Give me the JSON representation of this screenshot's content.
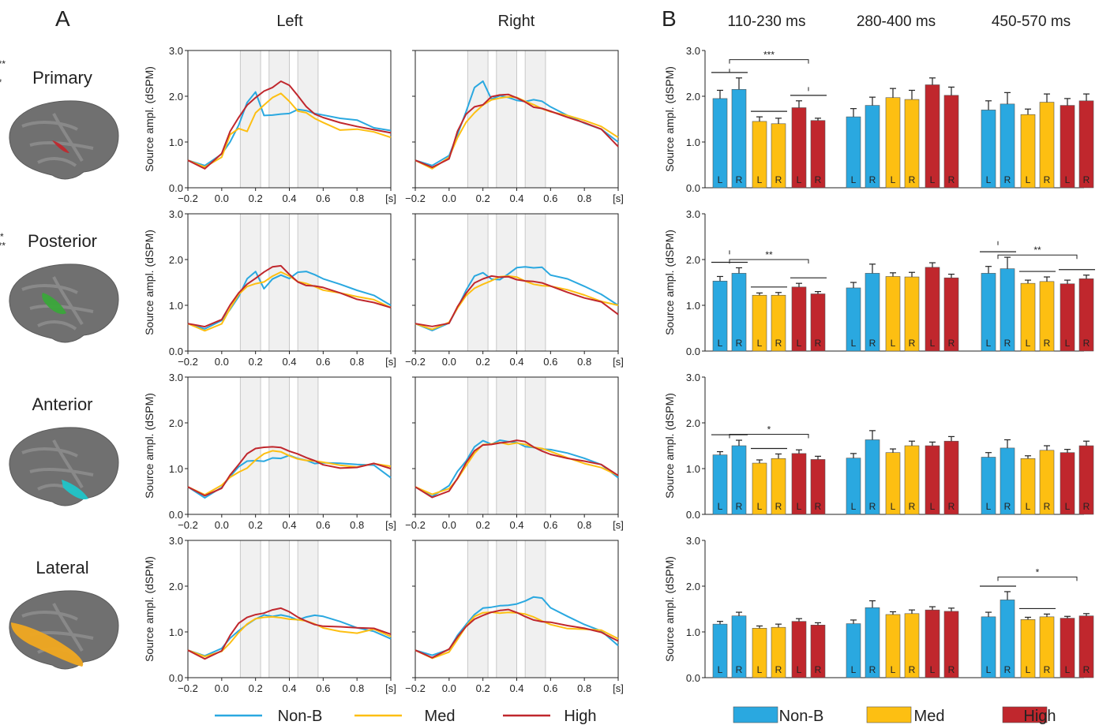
{
  "panel_labels": {
    "a": "A",
    "b": "B"
  },
  "hemispheres": [
    "Left",
    "Right"
  ],
  "regions": [
    {
      "name": "Primary",
      "color": "#c0282d"
    },
    {
      "name": "Posterior",
      "color": "#3aa63a"
    },
    {
      "name": "Anterior",
      "color": "#1fc4c8"
    },
    {
      "name": "Lateral",
      "color": "#f0a820"
    }
  ],
  "time_windows": [
    "110-230 ms",
    "280-400 ms",
    "450-570 ms"
  ],
  "colors": {
    "nonb": "#2aa8e0",
    "med": "#fdbf12",
    "high": "#c0272d"
  },
  "legend": [
    {
      "key": "nonb",
      "label": "Non-B"
    },
    {
      "key": "med",
      "label": "Med"
    },
    {
      "key": "high",
      "label": "High"
    }
  ],
  "chart_data": [
    {
      "type": "line",
      "panel": "A",
      "ylabel": "Source ampl. (dSPM)",
      "xticks": [
        "−0.2",
        "0.0",
        "0.2",
        "0.4",
        "0.6",
        "0.8",
        "[s]"
      ],
      "xtick_values": [
        -0.2,
        0.0,
        0.2,
        0.4,
        0.6,
        0.8,
        1.0
      ],
      "yticks": [
        "0.0",
        "1.0",
        "2.0",
        "3.0"
      ],
      "xlim": [
        -0.2,
        1.0
      ],
      "ylim": [
        0,
        3
      ],
      "shaded_windows": [
        [
          0.11,
          0.23
        ],
        [
          0.28,
          0.4
        ],
        [
          0.45,
          0.57
        ]
      ],
      "x": [
        -0.2,
        -0.1,
        0.0,
        0.05,
        0.1,
        0.15,
        0.2,
        0.25,
        0.3,
        0.35,
        0.4,
        0.45,
        0.5,
        0.55,
        0.6,
        0.7,
        0.8,
        0.9,
        1.0
      ],
      "series": [
        {
          "key": "nonb",
          "name": "Non-B",
          "values": [
            [
              0.6,
              0.45,
              0.7,
              1.0,
              1.4,
              1.9,
              2.1,
              1.55,
              1.55,
              1.6,
              1.65,
              1.75,
              1.7,
              1.6,
              1.55,
              1.5,
              1.5,
              1.35,
              1.25
            ],
            [
              0.6,
              0.45,
              0.7,
              1.2,
              1.7,
              2.2,
              2.3,
              1.9,
              2.0,
              2.0,
              1.95,
              1.9,
              1.9,
              1.85,
              1.75,
              1.6,
              1.45,
              1.3,
              1.0
            ],
            [
              0.6,
              0.48,
              0.7,
              0.95,
              1.2,
              1.55,
              1.7,
              1.35,
              1.6,
              1.7,
              1.6,
              1.7,
              1.7,
              1.65,
              1.6,
              1.5,
              1.35,
              1.2,
              1.0
            ],
            [
              0.6,
              0.48,
              0.65,
              0.95,
              1.3,
              1.6,
              1.7,
              1.6,
              1.6,
              1.7,
              1.8,
              1.8,
              1.8,
              1.85,
              1.7,
              1.6,
              1.4,
              1.2,
              1.0
            ],
            [
              0.6,
              0.4,
              0.6,
              0.8,
              1.0,
              1.15,
              1.2,
              1.2,
              1.25,
              1.2,
              1.25,
              1.2,
              1.2,
              1.15,
              1.15,
              1.1,
              1.05,
              1.05,
              0.8
            ],
            [
              0.6,
              0.4,
              0.6,
              0.9,
              1.15,
              1.5,
              1.65,
              1.55,
              1.6,
              1.55,
              1.55,
              1.5,
              1.5,
              1.45,
              1.4,
              1.3,
              1.2,
              1.1,
              0.8
            ],
            [
              0.6,
              0.45,
              0.6,
              0.85,
              1.05,
              1.2,
              1.3,
              1.35,
              1.3,
              1.35,
              1.35,
              1.3,
              1.35,
              1.35,
              1.3,
              1.2,
              1.1,
              1.05,
              0.85
            ],
            [
              0.6,
              0.45,
              0.6,
              0.95,
              1.2,
              1.4,
              1.5,
              1.5,
              1.55,
              1.6,
              1.65,
              1.7,
              1.75,
              1.7,
              1.5,
              1.35,
              1.2,
              1.05,
              0.7
            ]
          ]
        },
        {
          "key": "med",
          "name": "Med",
          "values": [
            [
              0.6,
              0.45,
              0.7,
              1.2,
              1.3,
              1.2,
              1.6,
              1.8,
              2.0,
              2.1,
              1.9,
              1.65,
              1.6,
              1.5,
              1.45,
              1.3,
              1.3,
              1.2,
              1.1
            ],
            [
              0.6,
              0.45,
              0.7,
              1.1,
              1.4,
              1.6,
              1.8,
              1.95,
              2.0,
              2.0,
              1.95,
              1.85,
              1.8,
              1.75,
              1.7,
              1.6,
              1.45,
              1.3,
              1.1
            ],
            [
              0.6,
              0.48,
              0.6,
              0.9,
              1.2,
              1.4,
              1.5,
              1.55,
              1.65,
              1.7,
              1.6,
              1.5,
              1.5,
              1.45,
              1.35,
              1.25,
              1.15,
              1.1,
              0.95
            ],
            [
              0.6,
              0.48,
              0.6,
              0.9,
              1.2,
              1.4,
              1.5,
              1.55,
              1.6,
              1.6,
              1.6,
              1.55,
              1.5,
              1.45,
              1.4,
              1.3,
              1.2,
              1.1,
              1.0
            ],
            [
              0.6,
              0.4,
              0.6,
              0.8,
              0.95,
              1.05,
              1.2,
              1.3,
              1.35,
              1.35,
              1.3,
              1.25,
              1.2,
              1.15,
              1.1,
              1.05,
              1.05,
              1.15,
              1.05
            ],
            [
              0.6,
              0.4,
              0.55,
              0.8,
              1.1,
              1.35,
              1.5,
              1.5,
              1.55,
              1.55,
              1.6,
              1.55,
              1.45,
              1.4,
              1.35,
              1.25,
              1.15,
              1.05,
              0.85
            ],
            [
              0.6,
              0.45,
              0.6,
              0.8,
              1.0,
              1.15,
              1.25,
              1.3,
              1.35,
              1.35,
              1.3,
              1.25,
              1.2,
              1.15,
              1.1,
              1.05,
              1.0,
              1.05,
              0.9
            ],
            [
              0.6,
              0.45,
              0.6,
              0.85,
              1.1,
              1.3,
              1.4,
              1.45,
              1.45,
              1.45,
              1.4,
              1.35,
              1.3,
              1.25,
              1.2,
              1.1,
              1.05,
              1.0,
              0.85
            ]
          ]
        },
        {
          "key": "high",
          "name": "High",
          "values": [
            [
              0.6,
              0.45,
              0.75,
              1.2,
              1.5,
              1.8,
              2.0,
              2.15,
              2.2,
              2.3,
              2.2,
              2.0,
              1.8,
              1.65,
              1.55,
              1.4,
              1.3,
              1.25,
              1.2
            ],
            [
              0.6,
              0.45,
              0.6,
              1.2,
              1.6,
              1.8,
              1.85,
              2.0,
              2.0,
              2.0,
              1.95,
              1.9,
              1.8,
              1.75,
              1.65,
              1.5,
              1.4,
              1.3,
              0.9
            ],
            [
              0.6,
              0.5,
              0.65,
              1.0,
              1.3,
              1.5,
              1.6,
              1.7,
              1.8,
              1.85,
              1.7,
              1.55,
              1.45,
              1.4,
              1.35,
              1.25,
              1.15,
              1.1,
              0.95
            ],
            [
              0.6,
              0.5,
              0.6,
              1.0,
              1.3,
              1.5,
              1.55,
              1.6,
              1.6,
              1.65,
              1.6,
              1.55,
              1.5,
              1.45,
              1.4,
              1.3,
              1.2,
              1.1,
              0.8
            ],
            [
              0.6,
              0.4,
              0.6,
              0.9,
              1.1,
              1.3,
              1.4,
              1.45,
              1.5,
              1.5,
              1.4,
              1.3,
              1.2,
              1.15,
              1.1,
              1.05,
              1.05,
              1.1,
              1.0
            ],
            [
              0.6,
              0.4,
              0.55,
              0.8,
              1.1,
              1.35,
              1.5,
              1.55,
              1.6,
              1.6,
              1.6,
              1.55,
              1.45,
              1.4,
              1.35,
              1.25,
              1.15,
              1.05,
              0.85
            ],
            [
              0.6,
              0.45,
              0.6,
              0.9,
              1.15,
              1.3,
              1.4,
              1.45,
              1.5,
              1.5,
              1.4,
              1.3,
              1.25,
              1.2,
              1.15,
              1.1,
              1.05,
              1.05,
              0.95
            ],
            [
              0.6,
              0.45,
              0.6,
              0.85,
              1.1,
              1.3,
              1.4,
              1.45,
              1.45,
              1.45,
              1.4,
              1.35,
              1.3,
              1.25,
              1.2,
              1.1,
              1.05,
              1.0,
              0.8
            ]
          ]
        }
      ]
    },
    {
      "type": "bar",
      "panel": "B",
      "ylabel": "Source ampl. (dSPM)",
      "yticks": [
        "0.0",
        "1.0",
        "2.0",
        "3.0"
      ],
      "ylim": [
        0,
        3
      ],
      "bar_labels": [
        "L",
        "R"
      ],
      "bar_series_order": [
        "nonb",
        "nonb",
        "med",
        "med",
        "high",
        "high"
      ],
      "rows": [
        {
          "values": [
            [
              1.95,
              2.15,
              1.45,
              1.4,
              1.75,
              1.47
            ],
            [
              1.55,
              1.8,
              1.97,
              1.93,
              2.25,
              2.02
            ],
            [
              1.7,
              1.83,
              1.6,
              1.87,
              1.8,
              1.9
            ]
          ],
          "errors": [
            [
              0.18,
              0.25,
              0.1,
              0.12,
              0.15,
              0.05
            ],
            [
              0.18,
              0.18,
              0.2,
              0.2,
              0.15,
              0.18
            ],
            [
              0.2,
              0.25,
              0.12,
              0.18,
              0.15,
              0.15
            ]
          ]
        },
        {
          "values": [
            [
              1.53,
              1.7,
              1.22,
              1.22,
              1.4,
              1.25
            ],
            [
              1.38,
              1.7,
              1.63,
              1.62,
              1.83,
              1.6
            ],
            [
              1.7,
              1.8,
              1.48,
              1.52,
              1.47,
              1.58
            ]
          ],
          "errors": [
            [
              0.1,
              0.12,
              0.05,
              0.06,
              0.08,
              0.05
            ],
            [
              0.12,
              0.2,
              0.08,
              0.1,
              0.1,
              0.08
            ],
            [
              0.15,
              0.25,
              0.07,
              0.1,
              0.08,
              0.08
            ]
          ]
        },
        {
          "values": [
            [
              1.3,
              1.5,
              1.12,
              1.22,
              1.33,
              1.2
            ],
            [
              1.23,
              1.63,
              1.35,
              1.5,
              1.5,
              1.6
            ],
            [
              1.25,
              1.45,
              1.22,
              1.4,
              1.35,
              1.5
            ]
          ],
          "errors": [
            [
              0.07,
              0.12,
              0.07,
              0.1,
              0.08,
              0.07
            ],
            [
              0.1,
              0.2,
              0.08,
              0.1,
              0.08,
              0.1
            ],
            [
              0.1,
              0.18,
              0.06,
              0.1,
              0.07,
              0.1
            ]
          ]
        },
        {
          "values": [
            [
              1.17,
              1.35,
              1.08,
              1.1,
              1.23,
              1.15
            ],
            [
              1.18,
              1.53,
              1.38,
              1.4,
              1.48,
              1.45
            ],
            [
              1.33,
              1.7,
              1.27,
              1.33,
              1.3,
              1.35
            ]
          ],
          "errors": [
            [
              0.06,
              0.08,
              0.05,
              0.07,
              0.06,
              0.05
            ],
            [
              0.08,
              0.15,
              0.06,
              0.08,
              0.07,
              0.07
            ],
            [
              0.1,
              0.18,
              0.05,
              0.06,
              0.04,
              0.05
            ]
          ]
        }
      ],
      "significance": [
        {
          "row": 0,
          "window": 0,
          "from": 0,
          "to": 2,
          "label": "***",
          "y": 2.8
        },
        {
          "row": 0,
          "window": 0,
          "from": 0,
          "to": 4,
          "label": "***",
          "y": 2.6
        },
        {
          "row": 0,
          "window": 0,
          "from": 2,
          "to": 4,
          "label": "*",
          "y": 2.2
        },
        {
          "row": 1,
          "window": 0,
          "from": 0,
          "to": 2,
          "label": "**",
          "y": 2.0
        },
        {
          "row": 1,
          "window": 0,
          "from": 0,
          "to": 4,
          "label": "***",
          "y": 2.2
        },
        {
          "row": 1,
          "window": 2,
          "from": 0,
          "to": 2,
          "label": "**",
          "y": 2.1
        },
        {
          "row": 1,
          "window": 2,
          "from": 0,
          "to": 4,
          "label": "**",
          "y": 2.4
        },
        {
          "row": 2,
          "window": 0,
          "from": 0,
          "to": 2,
          "label": "*",
          "y": 1.75
        },
        {
          "row": 3,
          "window": 2,
          "from": 0,
          "to": 2,
          "label": "*",
          "y": 2.2
        }
      ],
      "pair_lines": [
        {
          "row": 0,
          "window": 0,
          "pairs": [
            0,
            1,
            2
          ]
        },
        {
          "row": 1,
          "window": 0,
          "pairs": [
            0,
            1,
            2
          ]
        },
        {
          "row": 1,
          "window": 2,
          "pairs": [
            0,
            1,
            2
          ]
        },
        {
          "row": 2,
          "window": 0,
          "pairs": [
            0,
            1
          ]
        },
        {
          "row": 3,
          "window": 2,
          "pairs": [
            0,
            1
          ]
        }
      ]
    }
  ]
}
